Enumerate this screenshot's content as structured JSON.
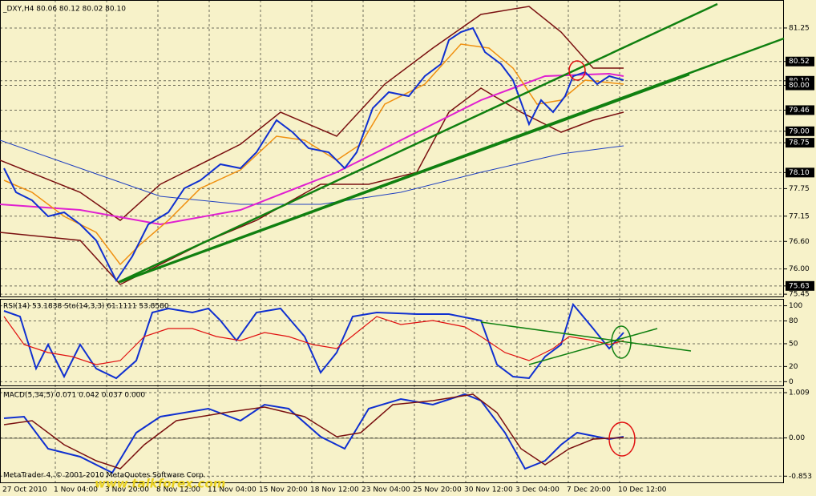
{
  "header": {
    "title": "_DXY,H4  80.06 80.12 80.02 80.10"
  },
  "price_axis": {
    "ylim": [
      75.4,
      81.86
    ],
    "ticks": [
      81.25,
      80.52,
      {
        "value": 80.1,
        "label": "80.10"
      },
      {
        "value": 80,
        "label": "80.00"
      },
      79.46,
      {
        "value": 79,
        "label": "79.00"
      },
      78.75,
      {
        "value": 78.1,
        "label": "78.10"
      },
      77.75,
      77.15,
      {
        "value": 76.6,
        "label": "76.60"
      },
      {
        "value": 76,
        "label": "76.00"
      },
      75.63,
      75.45
    ],
    "highlighted": [
      1,
      2,
      3,
      4,
      5,
      6,
      7,
      12
    ]
  },
  "rsi_panel": {
    "title": "RSI(14) 53.1838  Sto(14,3,3) 61.1111 53.8580",
    "ylim": [
      -6,
      108
    ],
    "ticks": [
      100,
      80,
      50,
      20,
      0
    ]
  },
  "macd_panel": {
    "title": "MACD(5,34,5) 0.071 0.042 0.037 0.000",
    "ylim": [
      -1.009,
      1.099
    ],
    "ticks": [
      1.009,
      {
        "value": 0,
        "label": "0.00"
      },
      -0.853
    ]
  },
  "time_axis": {
    "labels": [
      "27 Oct 2010",
      "1 Nov 04:00",
      "3 Nov 20:00",
      "8 Nov 12:00",
      "11 Nov 04:00",
      "15 Nov 20:00",
      "18 Nov 12:00",
      "23 Nov 04:00",
      "25 Nov 20:00",
      "30 Nov 12:00",
      "3 Dec 04:00",
      "7 Dec 20:00",
      "10 Dec 12:00"
    ]
  },
  "footer": {
    "copyright": "MetaTrader 4, © 2001-2010 MetaQuotes Software Corp.",
    "watermark": "www.talkforex.com"
  }
}
